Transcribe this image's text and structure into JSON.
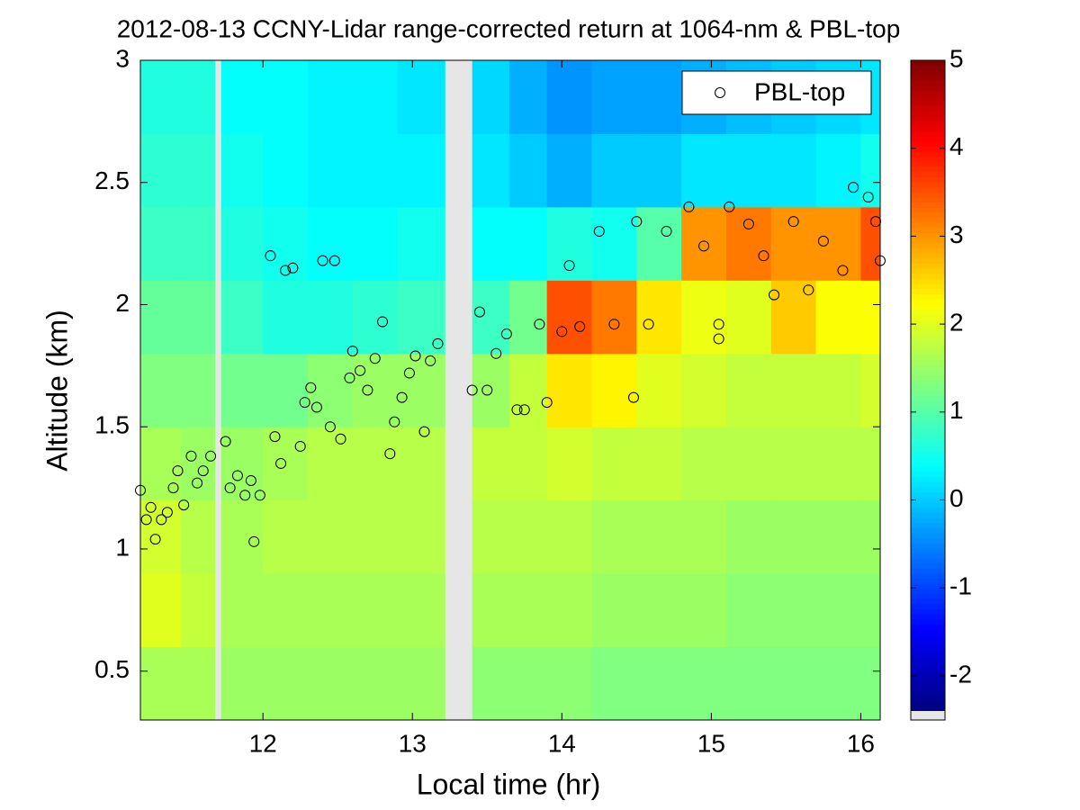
{
  "chart_data": {
    "type": "heatmap",
    "title": "2012-08-13 CCNY-Lidar range-corrected return at 1064-nm & PBL-top",
    "x_label": "Local time (hr)",
    "y_label": "Altitude (km)",
    "xlim": [
      11.18,
      16.13
    ],
    "ylim": [
      0.3,
      3
    ],
    "xticks": [
      12,
      13,
      14,
      15,
      16
    ],
    "yticks": [
      0.5,
      1,
      1.5,
      2,
      2.5,
      3
    ],
    "colormap": "jet",
    "missing_color": "#e6e6e6",
    "clim": [
      -2.4,
      5
    ],
    "cticks": [
      -2,
      -1,
      0,
      1,
      2,
      3,
      4,
      5
    ],
    "x_edges": [
      11.18,
      11.45,
      11.68,
      11.72,
      12.0,
      12.3,
      12.6,
      12.9,
      13.22,
      13.4,
      13.65,
      13.9,
      14.2,
      14.5,
      14.8,
      15.1,
      15.4,
      15.7,
      16.0,
      16.13
    ],
    "y_edges": [
      0.3,
      0.6,
      0.9,
      1.2,
      1.5,
      1.8,
      2.1,
      2.4,
      2.7,
      3.0
    ],
    "z": [
      [
        1.6,
        2.0,
        1.9,
        1.6,
        1.3,
        1.1,
        0.8,
        0.7,
        0.6
      ],
      [
        1.6,
        1.8,
        1.7,
        1.5,
        1.3,
        1.1,
        0.8,
        0.7,
        0.6
      ],
      [
        null,
        null,
        null,
        null,
        null,
        null,
        null,
        null,
        null
      ],
      [
        1.5,
        1.6,
        1.6,
        1.5,
        1.2,
        0.8,
        0.6,
        0.5,
        0.4
      ],
      [
        1.5,
        1.6,
        1.7,
        1.6,
        1.2,
        0.6,
        0.5,
        0.4,
        0.4
      ],
      [
        1.5,
        1.6,
        1.7,
        1.7,
        1.4,
        0.6,
        0.4,
        0.3,
        0.3
      ],
      [
        1.5,
        1.6,
        1.7,
        1.7,
        1.5,
        0.7,
        0.4,
        0.3,
        0.3
      ],
      [
        1.5,
        1.6,
        1.7,
        1.7,
        1.5,
        0.8,
        0.5,
        0.3,
        0.2
      ],
      [
        null,
        null,
        null,
        null,
        null,
        null,
        null,
        null,
        null
      ],
      [
        1.4,
        1.6,
        1.7,
        1.8,
        1.5,
        0.8,
        0.4,
        0.2,
        0.1
      ],
      [
        1.4,
        1.6,
        1.7,
        1.8,
        1.8,
        1.2,
        0.4,
        0.0,
        -0.2
      ],
      [
        1.4,
        1.6,
        1.7,
        1.9,
        2.4,
        3.5,
        0.6,
        -0.2,
        -0.4
      ],
      [
        1.3,
        1.5,
        1.6,
        1.8,
        2.3,
        3.2,
        0.5,
        0.0,
        -0.3
      ],
      [
        1.3,
        1.5,
        1.6,
        1.8,
        2.0,
        2.4,
        1.0,
        0.0,
        -0.3
      ],
      [
        1.3,
        1.5,
        1.6,
        1.7,
        1.9,
        2.1,
        3.0,
        0.2,
        -0.2
      ],
      [
        1.3,
        1.4,
        1.5,
        1.7,
        1.8,
        2.0,
        3.2,
        0.2,
        -0.1
      ],
      [
        1.3,
        1.4,
        1.5,
        1.7,
        1.8,
        2.6,
        3.0,
        0.2,
        0.0
      ],
      [
        1.3,
        1.4,
        1.5,
        1.7,
        1.8,
        2.2,
        3.0,
        0.3,
        0.1
      ],
      [
        1.3,
        1.4,
        1.5,
        1.7,
        1.9,
        2.2,
        3.5,
        0.5,
        0.2
      ]
    ],
    "legend": "upper right",
    "series": [
      {
        "name": "PBL-top",
        "type": "scatter",
        "marker": "circle",
        "color": "#000000",
        "x": [
          11.18,
          11.22,
          11.25,
          11.28,
          11.32,
          11.36,
          11.4,
          11.43,
          11.47,
          11.52,
          11.56,
          11.6,
          11.65,
          11.75,
          11.78,
          11.83,
          11.88,
          11.92,
          11.94,
          11.98,
          12.05,
          12.08,
          12.12,
          12.15,
          12.2,
          12.25,
          12.28,
          12.32,
          12.36,
          12.4,
          12.45,
          12.48,
          12.52,
          12.58,
          12.6,
          12.65,
          12.7,
          12.75,
          12.8,
          12.85,
          12.88,
          12.93,
          12.98,
          13.02,
          13.08,
          13.12,
          13.17,
          13.4,
          13.45,
          13.5,
          13.56,
          13.63,
          13.7,
          13.75,
          13.85,
          13.9,
          14.0,
          14.05,
          14.12,
          14.25,
          14.35,
          14.48,
          14.5,
          14.58,
          14.7,
          14.85,
          14.95,
          15.05,
          15.05,
          15.12,
          15.25,
          15.35,
          15.42,
          15.55,
          15.65,
          15.75,
          15.88,
          15.95,
          16.05,
          16.1,
          16.13
        ],
        "y": [
          1.24,
          1.12,
          1.17,
          1.04,
          1.12,
          1.15,
          1.25,
          1.32,
          1.18,
          1.38,
          1.27,
          1.32,
          1.38,
          1.44,
          1.25,
          1.3,
          1.22,
          1.28,
          1.03,
          1.22,
          2.2,
          1.46,
          1.35,
          2.14,
          2.15,
          1.42,
          1.6,
          1.66,
          1.58,
          2.18,
          1.5,
          2.18,
          1.45,
          1.7,
          1.81,
          1.73,
          1.65,
          1.78,
          1.93,
          1.39,
          1.52,
          1.62,
          1.72,
          1.79,
          1.48,
          1.77,
          1.84,
          1.65,
          1.97,
          1.65,
          1.8,
          1.88,
          1.57,
          1.57,
          1.92,
          1.6,
          1.89,
          2.16,
          1.91,
          2.3,
          1.92,
          1.62,
          2.34,
          1.92,
          2.3,
          2.4,
          2.24,
          1.92,
          1.86,
          2.4,
          2.33,
          2.2,
          2.04,
          2.34,
          2.06,
          2.26,
          2.14,
          2.48,
          2.44,
          2.34,
          2.18
        ]
      }
    ]
  }
}
